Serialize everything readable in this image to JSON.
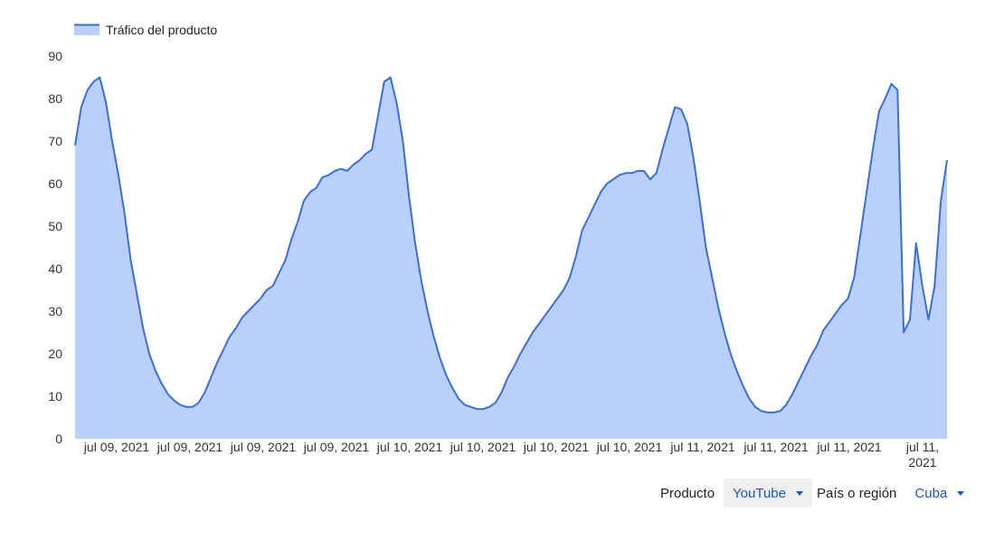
{
  "chart_data": {
    "type": "area",
    "legend": {
      "label": "Tráfico del producto",
      "position": "top-left"
    },
    "series": [
      {
        "name": "Tráfico del producto",
        "color": "#3b6fd6",
        "fill": "#bad0f9",
        "values": [
          69,
          78,
          82,
          84,
          85,
          79,
          70,
          62,
          53,
          42,
          34,
          26,
          20,
          16,
          13,
          10.5,
          9,
          8,
          7.5,
          7.5,
          8.5,
          11,
          14.5,
          18,
          21,
          24,
          26,
          28.5,
          30,
          31.5,
          33,
          35,
          36,
          39,
          42,
          47,
          51,
          56,
          58,
          59,
          61.5,
          62,
          63,
          63.5,
          63,
          64.5,
          65.5,
          67,
          68,
          76,
          84,
          85,
          79,
          70,
          57,
          46,
          37,
          30,
          24,
          19,
          15,
          12,
          9.5,
          8,
          7.5,
          7,
          7,
          7.5,
          8.5,
          11,
          14.5,
          17,
          20,
          22.5,
          25,
          27,
          29,
          31,
          33,
          35,
          38,
          43,
          49,
          52,
          55,
          58,
          60,
          61,
          62,
          62.5,
          62.5,
          63,
          63,
          61,
          62.5,
          68,
          73,
          78,
          77.5,
          74,
          66,
          56,
          45,
          38,
          31,
          25,
          20,
          16,
          12.5,
          9.5,
          7.5,
          6.5,
          6.2,
          6.2,
          6.5,
          8,
          10.5,
          13.5,
          16.5,
          19.5,
          22,
          25.5,
          27.5,
          29.5,
          31.5,
          33,
          38,
          48,
          58,
          68,
          77,
          80,
          83.5,
          82,
          25,
          28,
          46,
          36,
          28,
          36,
          56,
          65.5
        ]
      }
    ],
    "x_tick_labels": [
      "jul 09, 2021",
      "jul 09, 2021",
      "jul 09, 2021",
      "jul 09, 2021",
      "jul 10, 2021",
      "jul 10, 2021",
      "jul 10, 2021",
      "jul 10, 2021",
      "jul 11, 2021",
      "jul 11, 2021",
      "jul 11, 2021",
      "jul 11,\n2021"
    ],
    "y_ticks": [
      0,
      10,
      20,
      30,
      40,
      50,
      60,
      70,
      80,
      90
    ],
    "ylim": [
      0,
      90
    ],
    "grid": false,
    "xlabel": "",
    "ylabel": ""
  },
  "controls": {
    "product_label": "Producto",
    "product_value": "YouTube",
    "region_label": "País o región",
    "region_value": "Cuba"
  }
}
